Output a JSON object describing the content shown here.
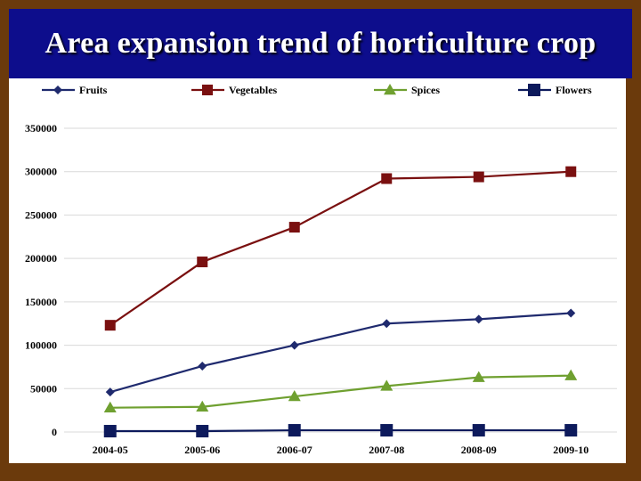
{
  "slide": {
    "title": "Area expansion trend of horticulture crop"
  },
  "colors": {
    "background": "#6b3a0c",
    "title_bar": "#0d0d8c",
    "fruits": "#1f2a6e",
    "vegetables": "#7a1010",
    "spices": "#6fa030",
    "flowers": "#0d1a5c",
    "grid": "#d9d9d9"
  },
  "chart_data": {
    "type": "line",
    "title": "",
    "xlabel": "",
    "ylabel": "",
    "categories": [
      "2004-05",
      "2005-06",
      "2006-07",
      "2007-08",
      "2008-09",
      "2009-10"
    ],
    "ylim": [
      0,
      350000
    ],
    "yticks": [
      0,
      50000,
      100000,
      150000,
      200000,
      250000,
      300000,
      350000
    ],
    "grid": true,
    "legend_position": "top",
    "series": [
      {
        "name": "Fruits",
        "marker": "diamond",
        "color": "#1f2a6e",
        "values": [
          46000,
          76000,
          100000,
          125000,
          130000,
          137000
        ]
      },
      {
        "name": "Vegetables",
        "marker": "square",
        "color": "#7a1010",
        "values": [
          123000,
          196000,
          236000,
          292000,
          294000,
          300000
        ]
      },
      {
        "name": "Spices",
        "marker": "triangle",
        "color": "#6fa030",
        "values": [
          28000,
          29000,
          41000,
          53000,
          63000,
          65000
        ]
      },
      {
        "name": "Flowers",
        "marker": "square",
        "color": "#0d1a5c",
        "values": [
          1000,
          1000,
          2000,
          2000,
          2000,
          2000
        ]
      }
    ]
  }
}
